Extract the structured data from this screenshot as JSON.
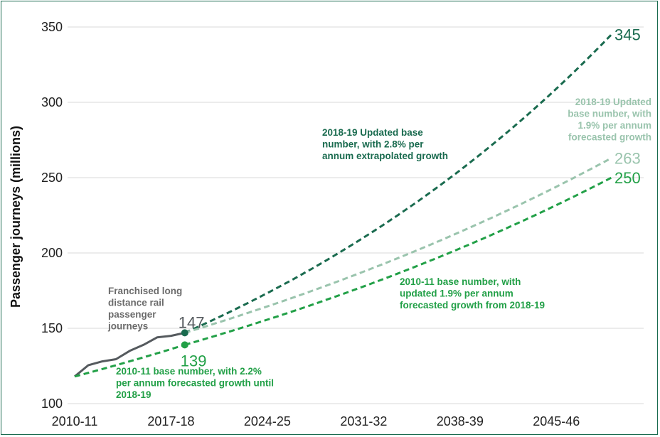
{
  "chart_data": {
    "type": "line",
    "ylabel": "Passenger journeys (millions)",
    "xlabel": "",
    "ylim": [
      100,
      350
    ],
    "yticks": [
      100,
      150,
      200,
      250,
      300,
      350
    ],
    "xlim": [
      2010,
      2053
    ],
    "xticks": [
      {
        "x": 2010,
        "label": "2010-11"
      },
      {
        "x": 2017,
        "label": "2017-18"
      },
      {
        "x": 2024,
        "label": "2024-25"
      },
      {
        "x": 2031,
        "label": "2031-32"
      },
      {
        "x": 2038,
        "label": "2038-39"
      },
      {
        "x": 2045,
        "label": "2045-46"
      }
    ],
    "grid": "horizontal",
    "colors": {
      "actual": "#555a5e",
      "extrapolated": "#1a6b4f",
      "updated_forecast": "#9ac4ad",
      "original_forecast": "#22a047"
    },
    "series": [
      {
        "key": "actual",
        "name": "Franchised long distance rail passenger journeys",
        "style": "solid",
        "x": [
          2010,
          2011,
          2012,
          2013,
          2014,
          2015,
          2016,
          2017,
          2018
        ],
        "y": [
          118,
          125.5,
          128,
          129.5,
          135,
          139,
          144,
          145,
          147
        ]
      },
      {
        "key": "extrapolated",
        "name": "2018-19 Updated base number, with 2.8% per annum extrapolated growth",
        "style": "dashed",
        "start": {
          "x": 2018,
          "y": 147
        },
        "rate": 0.028,
        "end": {
          "x": 2049,
          "y": 345
        }
      },
      {
        "key": "updated_forecast",
        "name": "2018-19 Updated base number, with 1.9% per annum forecasted growth",
        "style": "dashed",
        "start": {
          "x": 2018,
          "y": 147
        },
        "rate": 0.019,
        "end": {
          "x": 2049,
          "y": 263
        }
      },
      {
        "key": "original_pre",
        "name": "2010-11 base number, with 2.2% per annum forecasted growth until 2018-19",
        "style": "dashed",
        "start": {
          "x": 2010,
          "y": 118
        },
        "rate": 0.022,
        "end": {
          "x": 2018,
          "y": 139
        }
      },
      {
        "key": "original_post",
        "name": "2010-11 base number, with updated 1.9% per annum forecasted growth from 2018-19",
        "style": "dashed",
        "start": {
          "x": 2018,
          "y": 139
        },
        "rate": 0.019,
        "end": {
          "x": 2049,
          "y": 250
        }
      }
    ],
    "markers": [
      {
        "x": 2018,
        "y": 147,
        "label": "147"
      },
      {
        "x": 2018,
        "y": 139,
        "label": "139"
      }
    ],
    "end_labels": [
      {
        "value": "345",
        "y": 345
      },
      {
        "value": "263",
        "y": 263
      },
      {
        "value": "250",
        "y": 250
      }
    ],
    "annotations": {
      "actual": [
        "Franchised long",
        "distance rail",
        "passenger",
        "journeys"
      ],
      "extrapolated": [
        "2018-19 Updated base",
        "number, with 2.8% per",
        "annum extrapolated growth"
      ],
      "updated_forecast": [
        "2018-19 Updated",
        "base number, with",
        "1.9% per annum",
        "forecasted growth"
      ],
      "original_post": [
        "2010-11 base number, with",
        "updated 1.9% per annum",
        "forecasted growth from 2018-19"
      ],
      "original_pre": [
        "2010-11 base number, with 2.2%",
        "per annum forecasted growth until",
        "2018-19"
      ]
    }
  }
}
